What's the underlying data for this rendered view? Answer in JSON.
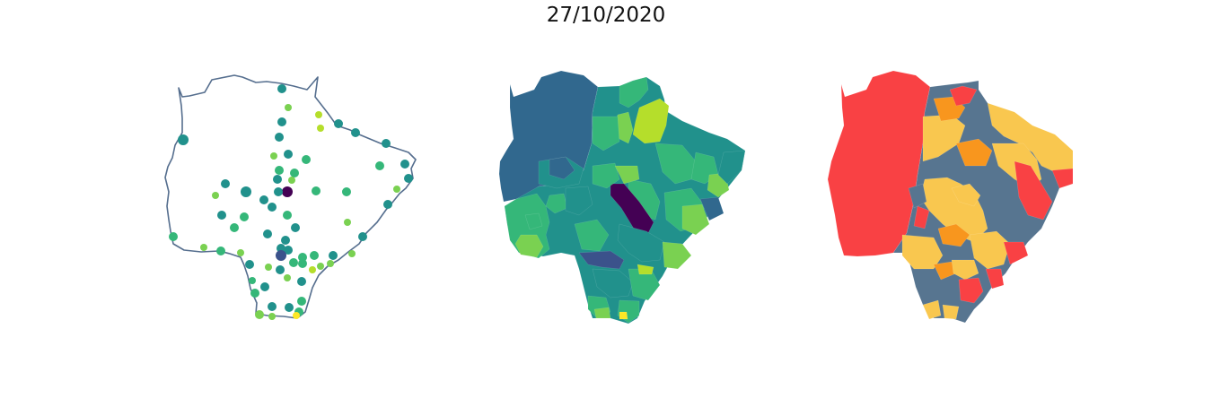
{
  "figure": {
    "title": "27/10/2020"
  },
  "colors": {
    "outline": "#556e8e",
    "viridis_dark": "#440154",
    "viridis_navy": "#3b528b",
    "viridis_blue": "#31688e",
    "viridis_teal": "#21918c",
    "viridis_green": "#35b779",
    "viridis_lime": "#7ad151",
    "viridis_yellowgreen": "#b5de2b",
    "viridis_yellow": "#fde725",
    "class_red": "#f94144",
    "class_orange": "#f8961e",
    "class_yellow": "#f9c74f",
    "class_slate": "#577590"
  },
  "panels": [
    {
      "kind": "point-map",
      "icon": "map-outline-with-dots"
    },
    {
      "kind": "choropleth-viridis",
      "icon": "filled-municipality-map"
    },
    {
      "kind": "choropleth-classes",
      "icon": "filled-municipality-map"
    }
  ]
}
